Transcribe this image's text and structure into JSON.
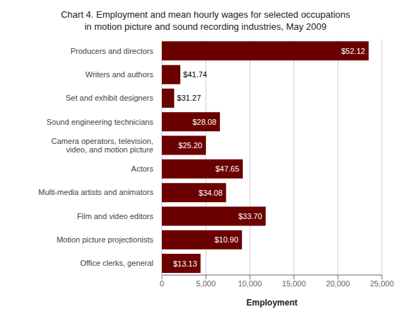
{
  "chart_data": {
    "type": "bar",
    "orientation": "horizontal",
    "title": "Chart 4. Employment and mean hourly wages for selected occupations\nin motion picture and sound recording industries, May 2009",
    "categories": [
      "Producers and directors",
      "Writers and authors",
      "Set and exhibit designers",
      "Sound engineering technicians",
      "Camera operators, television, video, and motion picture",
      "Actors",
      "Multi-media artists and animators",
      "Film and video editors",
      "Motion picture projectionists",
      "Office clerks, general"
    ],
    "values": [
      23500,
      2100,
      1400,
      6600,
      5000,
      9200,
      7300,
      11800,
      9100,
      4400
    ],
    "wages": [
      "$52.12",
      "$41.74",
      "$31.27",
      "$28.08",
      "$25.20",
      "$47.65",
      "$34.08",
      "$33.70",
      "$10.90",
      "$13.13"
    ],
    "color": "#6B0000",
    "xlabel": "Employment",
    "xlim": [
      0,
      25000
    ],
    "xticks": [
      0,
      {
        "value": 5000,
        "label": "5,000"
      },
      {
        "value": 10000,
        "label": "10,000"
      },
      {
        "value": 15000,
        "label": "15,000"
      },
      {
        "value": 20000,
        "label": "20,000"
      },
      {
        "value": 25000,
        "label": "25,000"
      }
    ],
    "grid": true
  }
}
